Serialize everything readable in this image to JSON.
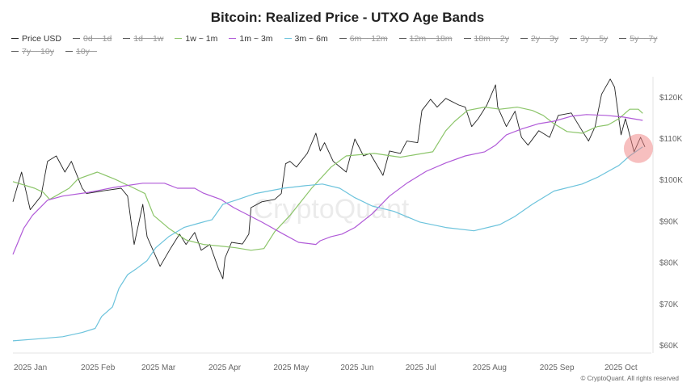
{
  "chart_data": {
    "type": "line",
    "title": "Bitcoin: Realized Price - UTXO Age Bands",
    "xlabel": "",
    "ylabel": "",
    "xlim": [
      "2025-01-01",
      "2025-10-23"
    ],
    "ylim": [
      58000,
      126000
    ],
    "y_ticks": [
      "$60K",
      "$70K",
      "$80K",
      "$90K",
      "$100K",
      "$110K",
      "$120K"
    ],
    "y_tick_values": [
      60000,
      70000,
      80000,
      90000,
      100000,
      110000,
      120000
    ],
    "x_ticks": [
      "2025 Jan",
      "2025 Feb",
      "2025 Mar",
      "2025 Apr",
      "2025 May",
      "2025 Jun",
      "2025 Jul",
      "2025 Aug",
      "2025 Sep",
      "2025 Oct"
    ],
    "x_tick_dates": [
      "2025-01-01",
      "2025-02-01",
      "2025-03-01",
      "2025-04-01",
      "2025-05-01",
      "2025-06-01",
      "2025-07-01",
      "2025-08-01",
      "2025-09-01",
      "2025-10-01"
    ],
    "y_axis_side": "right",
    "grid": false,
    "legend_position": "top",
    "watermark": "CryptoQuant",
    "legend": [
      {
        "name": "Price USD",
        "color": "#222222",
        "visible": true
      },
      {
        "name": "0d ~ 1d",
        "visible": false
      },
      {
        "name": "1d ~ 1w",
        "visible": false
      },
      {
        "name": "1w ~ 1m",
        "color": "#8cc56a",
        "visible": true
      },
      {
        "name": "1m ~ 3m",
        "color": "#b05ad8",
        "visible": true
      },
      {
        "name": "3m ~ 6m",
        "color": "#6cc3dc",
        "visible": true
      },
      {
        "name": "6m ~ 12m",
        "visible": false
      },
      {
        "name": "12m ~ 18m",
        "visible": false
      },
      {
        "name": "18m ~ 2y",
        "visible": false
      },
      {
        "name": "2y ~ 3y",
        "visible": false
      },
      {
        "name": "3y ~ 5y",
        "visible": false
      },
      {
        "name": "5y ~ 7y",
        "visible": false
      },
      {
        "name": "7y ~ 10y",
        "visible": false
      },
      {
        "name": "10y ~",
        "visible": false
      }
    ],
    "highlight": {
      "date": "2025-10-17",
      "value": 107500,
      "color": "#f08080"
    },
    "series": [
      {
        "name": "Price USD",
        "color": "#222222",
        "points": [
          [
            "2025-01-01",
            94600
          ],
          [
            "2025-01-05",
            101800
          ],
          [
            "2025-01-09",
            92700
          ],
          [
            "2025-01-14",
            96000
          ],
          [
            "2025-01-17",
            104400
          ],
          [
            "2025-01-21",
            105700
          ],
          [
            "2025-01-25",
            101800
          ],
          [
            "2025-01-28",
            104400
          ],
          [
            "2025-02-02",
            97900
          ],
          [
            "2025-02-04",
            96600
          ],
          [
            "2025-02-11",
            97200
          ],
          [
            "2025-02-20",
            97900
          ],
          [
            "2025-02-23",
            96000
          ],
          [
            "2025-02-26",
            84300
          ],
          [
            "2025-03-02",
            94000
          ],
          [
            "2025-03-04",
            86200
          ],
          [
            "2025-03-10",
            79000
          ],
          [
            "2025-03-15",
            83500
          ],
          [
            "2025-03-19",
            86800
          ],
          [
            "2025-03-22",
            84300
          ],
          [
            "2025-03-26",
            87200
          ],
          [
            "2025-03-29",
            82900
          ],
          [
            "2025-04-02",
            84300
          ],
          [
            "2025-04-06",
            78400
          ],
          [
            "2025-04-08",
            76000
          ],
          [
            "2025-04-09",
            81000
          ],
          [
            "2025-04-12",
            84800
          ],
          [
            "2025-04-17",
            84400
          ],
          [
            "2025-04-20",
            86800
          ],
          [
            "2025-04-21",
            93200
          ],
          [
            "2025-04-26",
            94600
          ],
          [
            "2025-05-02",
            95200
          ],
          [
            "2025-05-05",
            96600
          ],
          [
            "2025-05-07",
            103800
          ],
          [
            "2025-05-09",
            104400
          ],
          [
            "2025-05-12",
            103000
          ],
          [
            "2025-05-17",
            106300
          ],
          [
            "2025-05-21",
            111200
          ],
          [
            "2025-05-23",
            106900
          ],
          [
            "2025-05-25",
            108900
          ],
          [
            "2025-05-29",
            104400
          ],
          [
            "2025-06-04",
            101800
          ],
          [
            "2025-06-08",
            109800
          ],
          [
            "2025-06-12",
            105700
          ],
          [
            "2025-06-15",
            106300
          ],
          [
            "2025-06-21",
            101000
          ],
          [
            "2025-06-24",
            106900
          ],
          [
            "2025-06-29",
            106300
          ],
          [
            "2025-07-02",
            109300
          ],
          [
            "2025-07-07",
            108900
          ],
          [
            "2025-07-09",
            116700
          ],
          [
            "2025-07-13",
            119400
          ],
          [
            "2025-07-16",
            117500
          ],
          [
            "2025-07-20",
            119600
          ],
          [
            "2025-07-26",
            118000
          ],
          [
            "2025-07-29",
            117500
          ],
          [
            "2025-08-01",
            112800
          ],
          [
            "2025-08-04",
            114700
          ],
          [
            "2025-08-08",
            118000
          ],
          [
            "2025-08-12",
            122900
          ],
          [
            "2025-08-13",
            117500
          ],
          [
            "2025-08-17",
            112800
          ],
          [
            "2025-08-21",
            116500
          ],
          [
            "2025-08-24",
            110200
          ],
          [
            "2025-08-27",
            108300
          ],
          [
            "2025-09-01",
            111800
          ],
          [
            "2025-09-06",
            110200
          ],
          [
            "2025-09-10",
            115500
          ],
          [
            "2025-09-16",
            116100
          ],
          [
            "2025-09-21",
            111800
          ],
          [
            "2025-09-24",
            109300
          ],
          [
            "2025-09-27",
            112800
          ],
          [
            "2025-09-30",
            120600
          ],
          [
            "2025-10-04",
            124300
          ],
          [
            "2025-10-06",
            122300
          ],
          [
            "2025-10-09",
            110800
          ],
          [
            "2025-10-11",
            114700
          ],
          [
            "2025-10-15",
            106700
          ],
          [
            "2025-10-18",
            110200
          ],
          [
            "2025-10-20",
            107900
          ]
        ]
      },
      {
        "name": "1w ~ 1m",
        "color": "#8cc56a",
        "points": [
          [
            "2025-01-01",
            99500
          ],
          [
            "2025-01-11",
            97900
          ],
          [
            "2025-01-15",
            96900
          ],
          [
            "2025-01-18",
            95200
          ],
          [
            "2025-01-27",
            97900
          ],
          [
            "2025-01-31",
            100100
          ],
          [
            "2025-02-09",
            101800
          ],
          [
            "2025-02-17",
            100100
          ],
          [
            "2025-02-26",
            97900
          ],
          [
            "2025-03-03",
            96600
          ],
          [
            "2025-03-07",
            91300
          ],
          [
            "2025-03-14",
            88200
          ],
          [
            "2025-03-22",
            85400
          ],
          [
            "2025-03-30",
            84300
          ],
          [
            "2025-04-07",
            83900
          ],
          [
            "2025-04-14",
            83500
          ],
          [
            "2025-04-21",
            82900
          ],
          [
            "2025-04-27",
            83300
          ],
          [
            "2025-05-02",
            87400
          ],
          [
            "2025-05-09",
            91300
          ],
          [
            "2025-05-19",
            97900
          ],
          [
            "2025-05-28",
            103000
          ],
          [
            "2025-06-04",
            105700
          ],
          [
            "2025-06-17",
            106300
          ],
          [
            "2025-06-29",
            105400
          ],
          [
            "2025-07-14",
            106700
          ],
          [
            "2025-07-20",
            111800
          ],
          [
            "2025-07-24",
            114000
          ],
          [
            "2025-07-30",
            116700
          ],
          [
            "2025-08-07",
            117500
          ],
          [
            "2025-08-14",
            117000
          ],
          [
            "2025-08-22",
            117500
          ],
          [
            "2025-08-29",
            116700
          ],
          [
            "2025-09-03",
            115500
          ],
          [
            "2025-09-08",
            113500
          ],
          [
            "2025-09-14",
            111600
          ],
          [
            "2025-09-21",
            111200
          ],
          [
            "2025-09-28",
            112800
          ],
          [
            "2025-10-03",
            113200
          ],
          [
            "2025-10-08",
            114700
          ],
          [
            "2025-10-13",
            117000
          ],
          [
            "2025-10-17",
            117000
          ],
          [
            "2025-10-19",
            116000
          ]
        ]
      },
      {
        "name": "1m ~ 3m",
        "color": "#b05ad8",
        "points": [
          [
            "2025-01-01",
            81900
          ],
          [
            "2025-01-06",
            88200
          ],
          [
            "2025-01-10",
            91300
          ],
          [
            "2025-01-17",
            95000
          ],
          [
            "2025-01-24",
            96000
          ],
          [
            "2025-02-05",
            96900
          ],
          [
            "2025-02-17",
            98100
          ],
          [
            "2025-03-02",
            99100
          ],
          [
            "2025-03-12",
            99100
          ],
          [
            "2025-03-18",
            97900
          ],
          [
            "2025-03-26",
            97900
          ],
          [
            "2025-03-30",
            96700
          ],
          [
            "2025-04-07",
            95200
          ],
          [
            "2025-04-13",
            93200
          ],
          [
            "2025-04-26",
            89700
          ],
          [
            "2025-05-06",
            86800
          ],
          [
            "2025-05-13",
            84800
          ],
          [
            "2025-05-21",
            84300
          ],
          [
            "2025-05-23",
            85200
          ],
          [
            "2025-05-28",
            86200
          ],
          [
            "2025-06-02",
            86800
          ],
          [
            "2025-06-08",
            88400
          ],
          [
            "2025-06-16",
            91700
          ],
          [
            "2025-06-24",
            96000
          ],
          [
            "2025-07-02",
            99100
          ],
          [
            "2025-07-11",
            102000
          ],
          [
            "2025-07-20",
            104000
          ],
          [
            "2025-07-29",
            105700
          ],
          [
            "2025-08-07",
            106700
          ],
          [
            "2025-08-12",
            108300
          ],
          [
            "2025-08-17",
            110800
          ],
          [
            "2025-08-24",
            112200
          ],
          [
            "2025-09-01",
            113500
          ],
          [
            "2025-09-08",
            114100
          ],
          [
            "2025-09-16",
            115300
          ],
          [
            "2025-09-23",
            115700
          ],
          [
            "2025-10-02",
            115500
          ],
          [
            "2025-10-10",
            115100
          ],
          [
            "2025-10-19",
            114300
          ]
        ]
      },
      {
        "name": "3m ~ 6m",
        "color": "#6cc3dc",
        "points": [
          [
            "2025-01-01",
            61000
          ],
          [
            "2025-01-11",
            61400
          ],
          [
            "2025-01-24",
            62000
          ],
          [
            "2025-02-02",
            63000
          ],
          [
            "2025-02-08",
            64000
          ],
          [
            "2025-02-11",
            66900
          ],
          [
            "2025-02-16",
            69200
          ],
          [
            "2025-02-19",
            73700
          ],
          [
            "2025-02-23",
            77000
          ],
          [
            "2025-02-27",
            78400
          ],
          [
            "2025-03-04",
            80400
          ],
          [
            "2025-03-08",
            83500
          ],
          [
            "2025-03-14",
            86200
          ],
          [
            "2025-03-21",
            88400
          ],
          [
            "2025-03-27",
            89300
          ],
          [
            "2025-04-03",
            90300
          ],
          [
            "2025-04-08",
            94000
          ],
          [
            "2025-04-14",
            95000
          ],
          [
            "2025-04-23",
            96600
          ],
          [
            "2025-05-06",
            97900
          ],
          [
            "2025-05-16",
            98500
          ],
          [
            "2025-05-24",
            98900
          ],
          [
            "2025-06-01",
            97900
          ],
          [
            "2025-06-08",
            95600
          ],
          [
            "2025-06-16",
            93600
          ],
          [
            "2025-06-26",
            92300
          ],
          [
            "2025-07-08",
            89700
          ],
          [
            "2025-07-20",
            88400
          ],
          [
            "2025-08-02",
            87600
          ],
          [
            "2025-08-14",
            89100
          ],
          [
            "2025-08-21",
            91100
          ],
          [
            "2025-08-29",
            94000
          ],
          [
            "2025-09-08",
            97200
          ],
          [
            "2025-09-21",
            98900
          ],
          [
            "2025-09-28",
            100500
          ],
          [
            "2025-10-08",
            103400
          ],
          [
            "2025-10-13",
            105700
          ],
          [
            "2025-10-19",
            107900
          ]
        ]
      }
    ]
  },
  "footer": {
    "copyright": "© CryptoQuant. All rights reserved"
  }
}
